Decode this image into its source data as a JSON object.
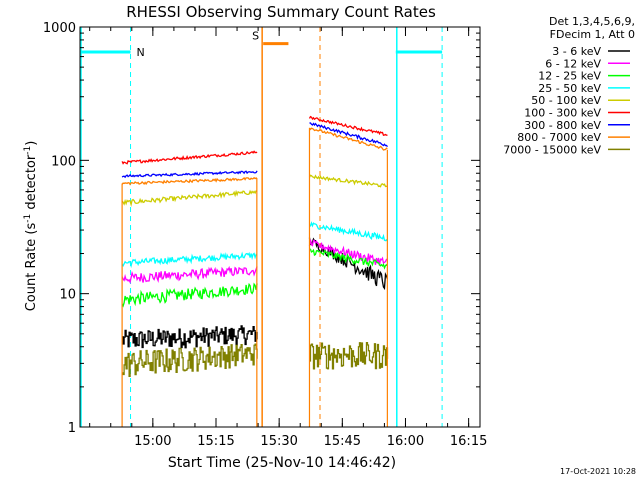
{
  "chart_data": {
    "type": "line",
    "title": "RHESSI Observing Summary Count Rates",
    "xlabel": "Start Time (25-Nov-10 14:46:42)",
    "ylabel": "Count Rate (s⁻¹ detector⁻¹)",
    "ylabel_parts": {
      "main": "Count Rate (s",
      "sup1": "-1",
      "mid": " detector",
      "sup2": "-1",
      "end": ")"
    },
    "yscale": "log",
    "ylim": [
      1,
      1000
    ],
    "xlim_min": [
      -4,
      91
    ],
    "y_ticks": [
      {
        "v": 1,
        "label": "1"
      },
      {
        "v": 10,
        "label": "10"
      },
      {
        "v": 100,
        "label": "100"
      },
      {
        "v": 1000,
        "label": "1000"
      }
    ],
    "x_ticks": [
      {
        "t": 13.3,
        "label": "15:00"
      },
      {
        "t": 28.3,
        "label": "15:15"
      },
      {
        "t": 43.3,
        "label": "15:30"
      },
      {
        "t": 58.3,
        "label": "15:45"
      },
      {
        "t": 73.3,
        "label": "16:00"
      },
      {
        "t": 88.3,
        "label": "16:15"
      }
    ],
    "legend": {
      "header": [
        "Det 1,3,4,5,6,9,",
        "FDecim 1, Att 0"
      ],
      "entries": [
        {
          "label": "3 - 6 keV",
          "color": "#000000"
        },
        {
          "label": "6 - 12 keV",
          "color": "#ff00ff"
        },
        {
          "label": "12 - 25 keV",
          "color": "#00ff00"
        },
        {
          "label": "25 - 50 keV",
          "color": "#00ffff"
        },
        {
          "label": "50 - 100 keV",
          "color": "#cccc00"
        },
        {
          "label": "100 - 300 keV",
          "color": "#ff0000"
        },
        {
          "label": "300 - 800 keV",
          "color": "#0000ff"
        },
        {
          "label": "800 - 7000 keV",
          "color": "#ff8000"
        },
        {
          "label": "7000 - 15000 keV",
          "color": "#808000"
        }
      ]
    },
    "segments": [
      {
        "t0": 6,
        "t1": 38,
        "series": [
          {
            "color": "#000000",
            "start": 4.5,
            "end": 5.0,
            "noise": 0.8,
            "step": true
          },
          {
            "color": "#ff00ff",
            "start": 13,
            "end": 15,
            "noise": 1.2
          },
          {
            "color": "#00ff00",
            "start": 9,
            "end": 11,
            "noise": 1.0
          },
          {
            "color": "#00ffff",
            "start": 17,
            "end": 19.5,
            "noise": 1.0
          },
          {
            "color": "#cccc00",
            "start": 48,
            "end": 58,
            "noise": 2.0
          },
          {
            "color": "#ff0000",
            "start": 96,
            "end": 115,
            "noise": 2.5
          },
          {
            "color": "#0000ff",
            "start": 76,
            "end": 82,
            "noise": 1.5
          },
          {
            "color": "#ff8000",
            "start": 67,
            "end": 73,
            "noise": 1.5
          },
          {
            "color": "#808000",
            "start": 3.0,
            "end": 3.6,
            "noise": 0.7,
            "step": true
          }
        ]
      },
      {
        "t0": 50.5,
        "t1": 69,
        "series": [
          {
            "color": "#000000",
            "start": 25,
            "end": 12,
            "noise": 2.0
          },
          {
            "color": "#ff00ff",
            "start": 24,
            "end": 17,
            "noise": 1.5
          },
          {
            "color": "#00ff00",
            "start": 21,
            "end": 16,
            "noise": 1.2
          },
          {
            "color": "#00ffff",
            "start": 33,
            "end": 26,
            "noise": 1.5
          },
          {
            "color": "#cccc00",
            "start": 76,
            "end": 64,
            "noise": 2.0
          },
          {
            "color": "#ff0000",
            "start": 210,
            "end": 155,
            "noise": 4.0
          },
          {
            "color": "#0000ff",
            "start": 190,
            "end": 130,
            "noise": 4.0
          },
          {
            "color": "#ff8000",
            "start": 175,
            "end": 120,
            "noise": 3.5
          },
          {
            "color": "#808000",
            "start": 3.5,
            "end": 3.5,
            "noise": 0.8,
            "step": true
          }
        ]
      }
    ],
    "saa_line": {
      "color": "#ff8000",
      "t0": 39.5,
      "t1": 45.5,
      "level": 750,
      "label": "S"
    },
    "saa_dashed_t": 53,
    "night_flags": [
      {
        "t0": -4,
        "t1": 8,
        "level": 650,
        "label": "N",
        "dashed_t": 8
      },
      {
        "t0": 71,
        "t1": 82,
        "level": 650,
        "label": "",
        "dashed_t": 82
      }
    ],
    "cyan_solid_t": [
      -4,
      71
    ],
    "timestamp": "17-Oct-2021 10:28"
  }
}
